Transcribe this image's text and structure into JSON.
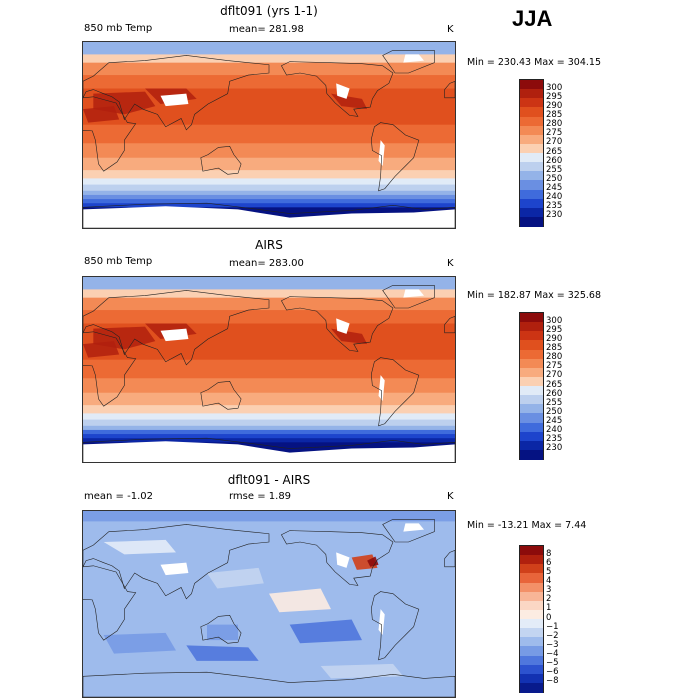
{
  "season": "JJA",
  "panels": [
    {
      "title": "dflt091 (yrs 1-1)",
      "left_label": "850 mb Temp",
      "center_label": "mean= 281.98",
      "units": "K",
      "minmax": "Min = 230.43 Max = 304.15",
      "colorbar_labels": [
        "300",
        "295",
        "290",
        "285",
        "280",
        "275",
        "270",
        "265",
        "260",
        "255",
        "250",
        "245",
        "240",
        "235",
        "230"
      ],
      "colorbar_colors": [
        "#8c0b0b",
        "#b0200e",
        "#cc3414",
        "#e0501e",
        "#ec6a34",
        "#f38a55",
        "#f8ab7e",
        "#fbd0b2",
        "#e1ebf7",
        "#bdd0ee",
        "#94b3e8",
        "#6a8fe2",
        "#3f6bdc",
        "#1d44cc",
        "#0b26a5",
        "#051282"
      ]
    },
    {
      "title": "AIRS",
      "left_label": "850 mb Temp",
      "center_label": "mean= 283.00",
      "units": "K",
      "minmax": "Min = 182.87 Max = 325.68",
      "colorbar_labels": [
        "300",
        "295",
        "290",
        "285",
        "280",
        "275",
        "270",
        "265",
        "260",
        "255",
        "250",
        "245",
        "240",
        "235",
        "230"
      ],
      "colorbar_colors": [
        "#8c0b0b",
        "#b0200e",
        "#cc3414",
        "#e0501e",
        "#ec6a34",
        "#f38a55",
        "#f8ab7e",
        "#fbd0b2",
        "#e1ebf7",
        "#bdd0ee",
        "#94b3e8",
        "#6a8fe2",
        "#3f6bdc",
        "#1d44cc",
        "#0b26a5",
        "#051282"
      ]
    },
    {
      "title": "dflt091 - AIRS",
      "left_label": "mean =   -1.02",
      "center_label": "rmse =    1.89",
      "units": "K",
      "minmax": "Min = -13.21 Max =    7.44",
      "colorbar_labels": [
        "8",
        "6",
        "5",
        "4",
        "3",
        "2",
        "1",
        "0",
        "−1",
        "−2",
        "−3",
        "−4",
        "−5",
        "−6",
        "−8"
      ],
      "colorbar_colors": [
        "#8c0b0b",
        "#b0200e",
        "#d0401a",
        "#e8643a",
        "#f39068",
        "#f8b597",
        "#fbd7c4",
        "#fcece2",
        "#e3ecf8",
        "#c3d5f1",
        "#9ebbec",
        "#779be5",
        "#4f77dd",
        "#2c52cf",
        "#1231b2",
        "#081a8c"
      ]
    }
  ],
  "chart_data": [
    {
      "type": "heatmap",
      "title": "dflt091 (yrs 1-1)",
      "variable": "850 mb Temp",
      "units": "K",
      "mean": 281.98,
      "min": 230.43,
      "max": 304.15,
      "colorbar_levels": [
        300,
        295,
        290,
        285,
        280,
        275,
        270,
        265,
        260,
        255,
        250,
        245,
        240,
        235,
        230
      ]
    },
    {
      "type": "heatmap",
      "title": "AIRS",
      "variable": "850 mb Temp",
      "units": "K",
      "mean": 283.0,
      "min": 182.87,
      "max": 325.68,
      "colorbar_levels": [
        300,
        295,
        290,
        285,
        280,
        275,
        270,
        265,
        260,
        255,
        250,
        245,
        240,
        235,
        230
      ]
    },
    {
      "type": "heatmap",
      "title": "dflt091 - AIRS",
      "units": "K",
      "mean": -1.02,
      "rmse": 1.89,
      "min": -13.21,
      "max": 7.44,
      "colorbar_levels": [
        8,
        6,
        5,
        4,
        3,
        2,
        1,
        0,
        -1,
        -2,
        -3,
        -4,
        -5,
        -6,
        -8
      ]
    }
  ]
}
